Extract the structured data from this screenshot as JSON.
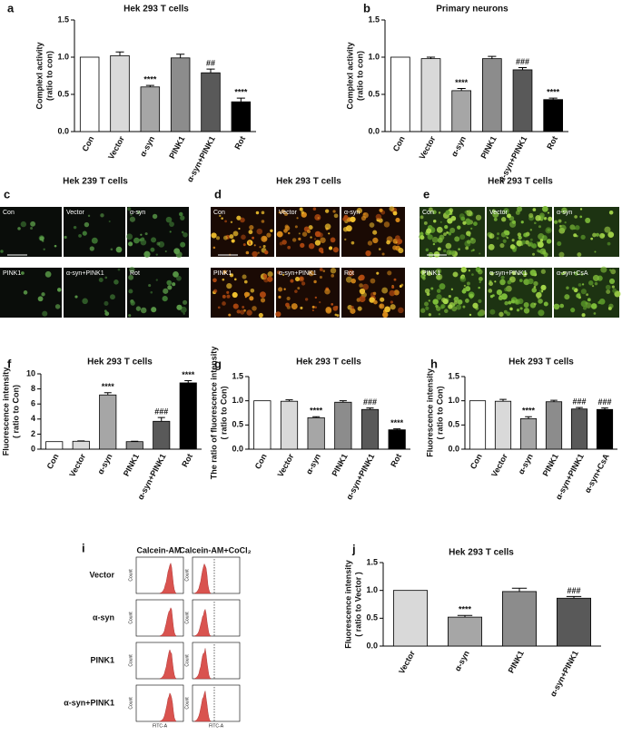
{
  "chart_data": [
    {
      "type": "bar",
      "letter": "a",
      "title": "Hek 293 T cells",
      "ylabel": [
        "Complexl activity",
        "(ratio to con)"
      ],
      "categories": [
        "Con",
        "Vector",
        "α-syn",
        "PINK1",
        "α-syn+PINK1",
        "Rot"
      ],
      "values": [
        1.0,
        1.02,
        0.6,
        0.99,
        0.79,
        0.4
      ],
      "errors": [
        null,
        0.05,
        0.02,
        0.05,
        0.05,
        0.05
      ],
      "significance": [
        null,
        null,
        "****",
        null,
        "##",
        "****"
      ],
      "colors": [
        "#ffffff",
        "#d9d9d9",
        "#a6a6a6",
        "#8c8c8c",
        "#595959",
        "#000000"
      ],
      "ylim": [
        0,
        1.5
      ],
      "yticks": [
        {
          "value": 0,
          "label": "0.0"
        },
        {
          "value": 0.5,
          "label": "0.5"
        },
        {
          "value": 1,
          "label": "1.0"
        },
        {
          "value": 1.5,
          "label": "1.5"
        }
      ]
    },
    {
      "type": "bar",
      "letter": "b",
      "title": "Primary neurons",
      "ylabel": [
        "Complexl activity",
        "(ratio to con)"
      ],
      "categories": [
        "Con",
        "Vector",
        "α-syn",
        "PINK1",
        "α-syn+PINK1",
        "Rot"
      ],
      "values": [
        1.0,
        0.98,
        0.55,
        0.98,
        0.83,
        0.43
      ],
      "errors": [
        null,
        0.02,
        0.03,
        0.03,
        0.03,
        0.02
      ],
      "significance": [
        null,
        null,
        "****",
        null,
        "###",
        "****"
      ],
      "colors": [
        "#ffffff",
        "#d9d9d9",
        "#a6a6a6",
        "#8c8c8c",
        "#595959",
        "#000000"
      ],
      "ylim": [
        0,
        1.5
      ],
      "yticks": [
        {
          "value": 0,
          "label": "0.0"
        },
        {
          "value": 0.5,
          "label": "0.5"
        },
        {
          "value": 1,
          "label": "1.0"
        },
        {
          "value": 1.5,
          "label": "1.5"
        }
      ]
    },
    {
      "type": "bar",
      "letter": "f",
      "title": "Hek 293 T cells",
      "ylabel": [
        "Fluorescence intensity",
        "( ratio to Con)"
      ],
      "categories": [
        "Con",
        "Vector",
        "α-syn",
        "PINK1",
        "α-syn+PINK1",
        "Rot"
      ],
      "values": [
        1.0,
        1.05,
        7.2,
        1.0,
        3.7,
        8.8
      ],
      "errors": [
        null,
        0.05,
        0.3,
        0.05,
        0.5,
        0.3
      ],
      "significance": [
        null,
        null,
        "****",
        null,
        "###",
        "****"
      ],
      "colors": [
        "#ffffff",
        "#d9d9d9",
        "#a6a6a6",
        "#8c8c8c",
        "#595959",
        "#000000"
      ],
      "ylim": [
        0,
        10
      ],
      "yticks": [
        0,
        2,
        4,
        6,
        8,
        10
      ]
    },
    {
      "type": "bar",
      "letter": "g",
      "title": "Hek 293 T cells",
      "ylabel": [
        "The ratio of fluorescence intensity",
        "( ratio to Con)"
      ],
      "categories": [
        "Con",
        "Vector",
        "α-syn",
        "PINK1",
        "α-syn+PINK1",
        "Rot"
      ],
      "values": [
        1.0,
        0.99,
        0.65,
        0.97,
        0.82,
        0.4
      ],
      "errors": [
        null,
        0.03,
        0.02,
        0.03,
        0.03,
        0.02
      ],
      "significance": [
        null,
        null,
        "****",
        null,
        "###",
        "****"
      ],
      "colors": [
        "#ffffff",
        "#d9d9d9",
        "#a6a6a6",
        "#8c8c8c",
        "#595959",
        "#000000"
      ],
      "ylim": [
        0,
        1.5
      ],
      "yticks": [
        {
          "value": 0,
          "label": "0.0"
        },
        {
          "value": 0.5,
          "label": "0.5"
        },
        {
          "value": 1,
          "label": "1.0"
        },
        {
          "value": 1.5,
          "label": "1.5"
        }
      ]
    },
    {
      "type": "bar",
      "letter": "h",
      "title": "Hek 293 T cells",
      "ylabel": [
        "Fluorescence intensity",
        "( ratio to Con)"
      ],
      "categories": [
        "Con",
        "Vector",
        "α-syn",
        "PINK1",
        "α-syn+PINK1",
        "α-syn+CsA"
      ],
      "values": [
        1.0,
        0.99,
        0.63,
        0.98,
        0.83,
        0.82
      ],
      "errors": [
        null,
        0.04,
        0.04,
        0.03,
        0.03,
        0.03
      ],
      "significance": [
        null,
        null,
        "****",
        null,
        "###",
        "###"
      ],
      "colors": [
        "#ffffff",
        "#d9d9d9",
        "#a6a6a6",
        "#8c8c8c",
        "#595959",
        "#000000"
      ],
      "ylim": [
        0,
        1.5
      ],
      "yticks": [
        {
          "value": 0,
          "label": "0.0"
        },
        {
          "value": 0.5,
          "label": "0.5"
        },
        {
          "value": 1,
          "label": "1.0"
        },
        {
          "value": 1.5,
          "label": "1.5"
        }
      ]
    },
    {
      "type": "bar",
      "letter": "j",
      "title": "Hek 293 T cells",
      "ylabel": [
        "Fluorescence intensity",
        "( ratio to Vector )"
      ],
      "categories": [
        "Vector",
        "α-syn",
        "PINK1",
        "α-syn+PINK1"
      ],
      "values": [
        1.0,
        0.52,
        0.98,
        0.86
      ],
      "errors": [
        null,
        0.03,
        0.06,
        0.03
      ],
      "significance": [
        null,
        "****",
        null,
        "###"
      ],
      "colors": [
        "#d9d9d9",
        "#a6a6a6",
        "#8c8c8c",
        "#595959"
      ],
      "ylim": [
        0,
        1.5
      ],
      "yticks": [
        {
          "value": 0,
          "label": "0.0"
        },
        {
          "value": 0.5,
          "label": "0.5"
        },
        {
          "value": 1,
          "label": "1.0"
        },
        {
          "value": 1.5,
          "label": "1.5"
        }
      ]
    }
  ],
  "image_panels": [
    {
      "letter": "c",
      "title": "Hek 239 T cells",
      "labels": [
        "Con",
        "Vector",
        "α-syn",
        "PINK1",
        "α-syn+PINK1",
        "Rot"
      ]
    },
    {
      "letter": "d",
      "title": "Hek 293 T cells",
      "labels": [
        "Con",
        "Vector",
        "α-syn",
        "PINK1",
        "α-syn+PINK1",
        "Rot"
      ]
    },
    {
      "letter": "e",
      "title": "Hek 293 T cells",
      "labels": [
        "Con",
        "Vector",
        "α-syn",
        "PINK1",
        "α-syn+PINK1",
        "α-syn+CsA"
      ]
    }
  ],
  "flow_panel": {
    "letter": "i",
    "columns": [
      "Calcein-AM",
      "Calcein-AM+CoCl₂"
    ],
    "rows": [
      "Vector",
      "α-syn",
      "PINK1",
      "α-syn+PINK1"
    ],
    "count_label": "Count",
    "x_label": "FITC-A"
  }
}
